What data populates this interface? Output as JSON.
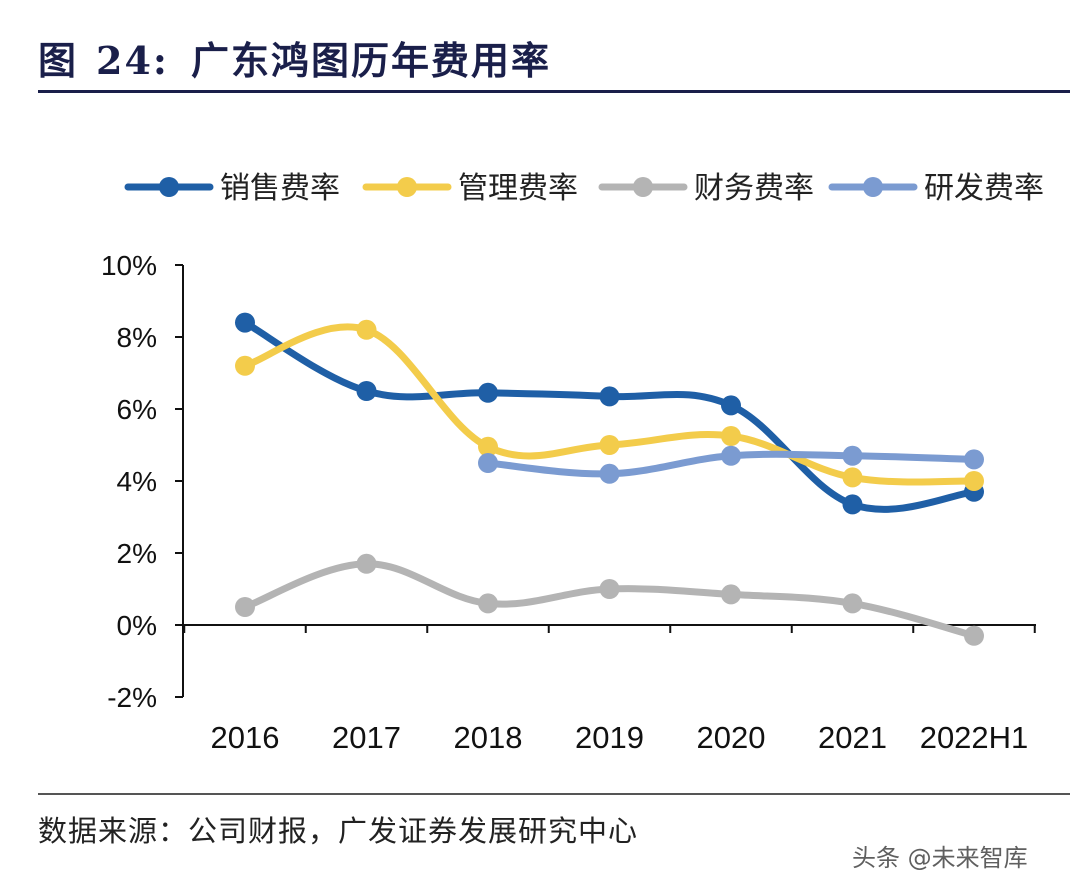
{
  "figure": {
    "label": "图",
    "number": "24:",
    "name": "广东鸿图历年费用率"
  },
  "source_note": "数据来源：公司财报，广发证券发展研究中心",
  "watermark": "头条 @未来智库",
  "chart_data": {
    "type": "line",
    "title": "广东鸿图历年费用率",
    "categories": [
      "2016",
      "2017",
      "2018",
      "2019",
      "2020",
      "2021",
      "2022H1"
    ],
    "y_ticks": [
      "-2%",
      "0%",
      "2%",
      "4%",
      "6%",
      "8%",
      "10%"
    ],
    "ylim": [
      -2,
      10
    ],
    "y_unit": "%",
    "legend_position": "top",
    "series": [
      {
        "name": "销售费率",
        "color": "#1f5fa6",
        "values": [
          8.4,
          6.5,
          6.45,
          6.35,
          6.1,
          3.35,
          3.7
        ]
      },
      {
        "name": "管理费率",
        "color": "#f3cc4b",
        "values": [
          7.2,
          8.2,
          4.95,
          5.0,
          5.25,
          4.1,
          4.0
        ]
      },
      {
        "name": "财务费率",
        "color": "#b4b4b4",
        "values": [
          0.5,
          1.7,
          0.6,
          1.0,
          0.85,
          0.6,
          -0.3
        ]
      },
      {
        "name": "研发费率",
        "color": "#7b9bd1",
        "values": [
          null,
          null,
          4.5,
          4.2,
          4.7,
          4.7,
          4.6
        ]
      }
    ]
  }
}
